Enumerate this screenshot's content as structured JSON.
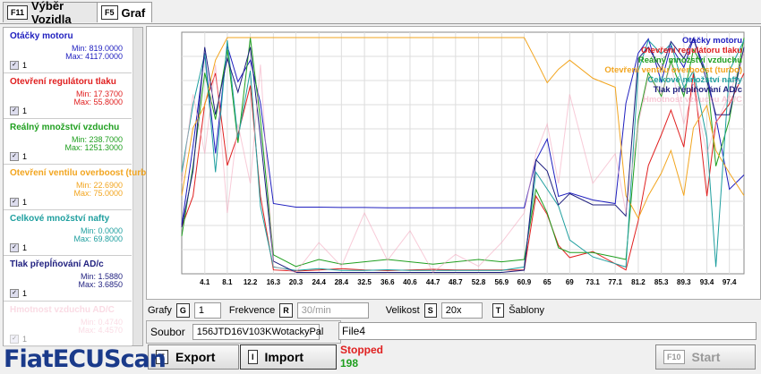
{
  "tabs": [
    {
      "key": "F11",
      "label": "Výběr Vozidla"
    },
    {
      "key": "F5",
      "label": "Graf"
    }
  ],
  "chart_data": {
    "type": "line",
    "x": [
      0,
      2,
      4.1,
      6,
      8.1,
      10,
      12.2,
      14,
      16.3,
      20.3,
      24.4,
      28.4,
      32.5,
      36.6,
      40.6,
      44.7,
      48.7,
      52.8,
      56.9,
      60.9,
      63,
      65.0,
      67,
      69.0,
      73.1,
      77.1,
      79,
      81.2,
      83,
      85.3,
      87,
      89.3,
      91,
      93.4,
      95,
      97.4,
      100
    ],
    "xlim": [
      0,
      100
    ],
    "xticks": [
      4.1,
      8.1,
      12.2,
      16.3,
      20.3,
      24.4,
      28.4,
      32.5,
      36.6,
      40.6,
      44.7,
      48.7,
      52.8,
      56.9,
      60.9,
      65.0,
      69.0,
      73.1,
      77.1,
      81.2,
      85.3,
      89.3,
      93.4,
      97.4
    ],
    "grid": true,
    "series": [
      {
        "name": "Otáčky motoru",
        "color": "#1f1fbf",
        "faded": false,
        "check_label": "1",
        "ylim": [
          {
            "value": 819,
            "label": "Min: 819.0000"
          },
          {
            "value": 4117,
            "label": "Max: 4117.0000"
          }
        ],
        "values": [
          1500,
          2600,
          3900,
          2500,
          4000,
          3500,
          3800,
          3200,
          1800,
          1750,
          1750,
          1745,
          1745,
          1740,
          1740,
          1740,
          1740,
          1740,
          1740,
          1740,
          2400,
          2700,
          1900,
          1950,
          1850,
          1800,
          3200,
          3900,
          4100,
          3500,
          4000,
          3700,
          4100,
          3600,
          3000,
          2000,
          2200
        ]
      },
      {
        "name": "Otevření regulátoru tlaku",
        "color": "#e02020",
        "faded": false,
        "check_label": "1",
        "ylim": [
          {
            "value": 17.37,
            "label": "Min: 17.3700"
          },
          {
            "value": 55.8,
            "label": "Max: 55.8000"
          }
        ],
        "values": [
          25,
          30,
          45,
          50,
          35,
          40,
          48,
          30,
          18,
          17.8,
          18,
          18.2,
          18,
          17.9,
          18,
          18.1,
          18,
          18,
          18,
          18,
          30,
          27,
          22,
          20,
          21,
          19,
          18,
          26,
          35,
          40,
          44,
          38,
          50,
          30,
          42,
          45,
          50
        ]
      },
      {
        "name": "Reálný množství vzduchu",
        "color": "#1f9f1f",
        "faded": false,
        "check_label": "1",
        "ylim": [
          {
            "value": 238.7,
            "label": "Min: 238.7000"
          },
          {
            "value": 1251.3,
            "label": "Max: 1251.3000"
          }
        ],
        "values": [
          400,
          700,
          1100,
          900,
          1200,
          800,
          1250,
          900,
          320,
          270,
          300,
          280,
          290,
          300,
          290,
          280,
          290,
          300,
          290,
          300,
          600,
          500,
          350,
          330,
          330,
          310,
          300,
          900,
          1100,
          1000,
          1150,
          1000,
          1200,
          1100,
          700,
          900,
          1250
        ]
      },
      {
        "name": "Otevření ventilu overboost (turbo)",
        "color": "#f2a51f",
        "faded": false,
        "check_label": "1",
        "ylim": [
          {
            "value": 22.69,
            "label": "Min: 22.6900"
          },
          {
            "value": 75,
            "label": "Max: 75.0000"
          }
        ],
        "values": [
          40,
          55,
          60,
          70,
          75,
          75,
          75,
          75,
          75,
          75,
          75,
          75,
          75,
          75,
          75,
          75,
          75,
          75,
          75,
          75,
          70,
          65,
          68,
          70,
          66,
          64,
          40,
          35,
          40,
          45,
          50,
          40,
          55,
          60,
          50,
          45,
          40
        ]
      },
      {
        "name": "Celkové množství nafty",
        "color": "#1f9f9f",
        "faded": false,
        "check_label": "1",
        "ylim": [
          {
            "value": 0,
            "label": "Min: 0.0000"
          },
          {
            "value": 69.8,
            "label": "Max: 69.8000"
          }
        ],
        "values": [
          30,
          50,
          65,
          30,
          69,
          40,
          60,
          20,
          2,
          1,
          1.5,
          1,
          1,
          1.2,
          1,
          1,
          1,
          1,
          1,
          2,
          30,
          25,
          20,
          10,
          5,
          3,
          2,
          60,
          69,
          65,
          68,
          55,
          60,
          40,
          2,
          60,
          69
        ]
      },
      {
        "name": "Tlak přepĺňování AD/c",
        "color": "#1f1f7f",
        "faded": false,
        "check_label": "1",
        "ylim": [
          {
            "value": 1.588,
            "label": "Min: 1.5880"
          },
          {
            "value": 3.685,
            "label": "Max: 3.6850"
          }
        ],
        "values": [
          2.0,
          2.5,
          3.6,
          3.0,
          3.5,
          3.2,
          3.6,
          2.8,
          1.7,
          1.6,
          1.6,
          1.6,
          1.6,
          1.6,
          1.6,
          1.6,
          1.6,
          1.6,
          1.6,
          1.62,
          2.6,
          2.5,
          2.2,
          2.3,
          2.2,
          2.2,
          2.1,
          3.5,
          3.6,
          3.4,
          3.65,
          3.5,
          3.68,
          3.3,
          3.0,
          3.0,
          3.6
        ]
      },
      {
        "name": "Hmotnost vzduchu AD/C",
        "color": "#f4a8be",
        "faded": true,
        "check_label": "1",
        "ylim": [
          {
            "value": 0.474,
            "label": "Min: 0.4740"
          },
          {
            "value": 4.457,
            "label": "Max: 4.4570"
          }
        ],
        "values": [
          2.0,
          3.5,
          2.5,
          4.0,
          1.5,
          3.0,
          2.0,
          4.0,
          0.6,
          0.5,
          1.0,
          0.6,
          1.5,
          0.7,
          1.2,
          0.5,
          0.8,
          0.6,
          1.0,
          1.5,
          2.5,
          3.0,
          2.0,
          3.5,
          2.0,
          2.5,
          1.5,
          3.0,
          3.8,
          3.5,
          4.0,
          3.0,
          3.6,
          2.5,
          3.0,
          3.5,
          4.2
        ]
      }
    ]
  },
  "controls": {
    "grafy": {
      "label": "Grafy",
      "key": "G",
      "value": "1"
    },
    "frekvence": {
      "label": "Frekvence",
      "key": "R",
      "value": "30/min"
    },
    "velikost": {
      "label": "Velikost",
      "key": "S",
      "value": "20x"
    },
    "sablony": {
      "label": "Šablony",
      "key": "T"
    },
    "soubor": {
      "label": "Soubor",
      "value": "156JTD16V103KWotackyPal"
    },
    "file": "File4",
    "status": "Stopped",
    "count": 198,
    "buttons": [
      {
        "key": "E",
        "label": "Export"
      },
      {
        "key": "I",
        "label": "Import"
      },
      {
        "key": "F10",
        "label": "Start"
      }
    ]
  },
  "logo": "FiatECUScan"
}
